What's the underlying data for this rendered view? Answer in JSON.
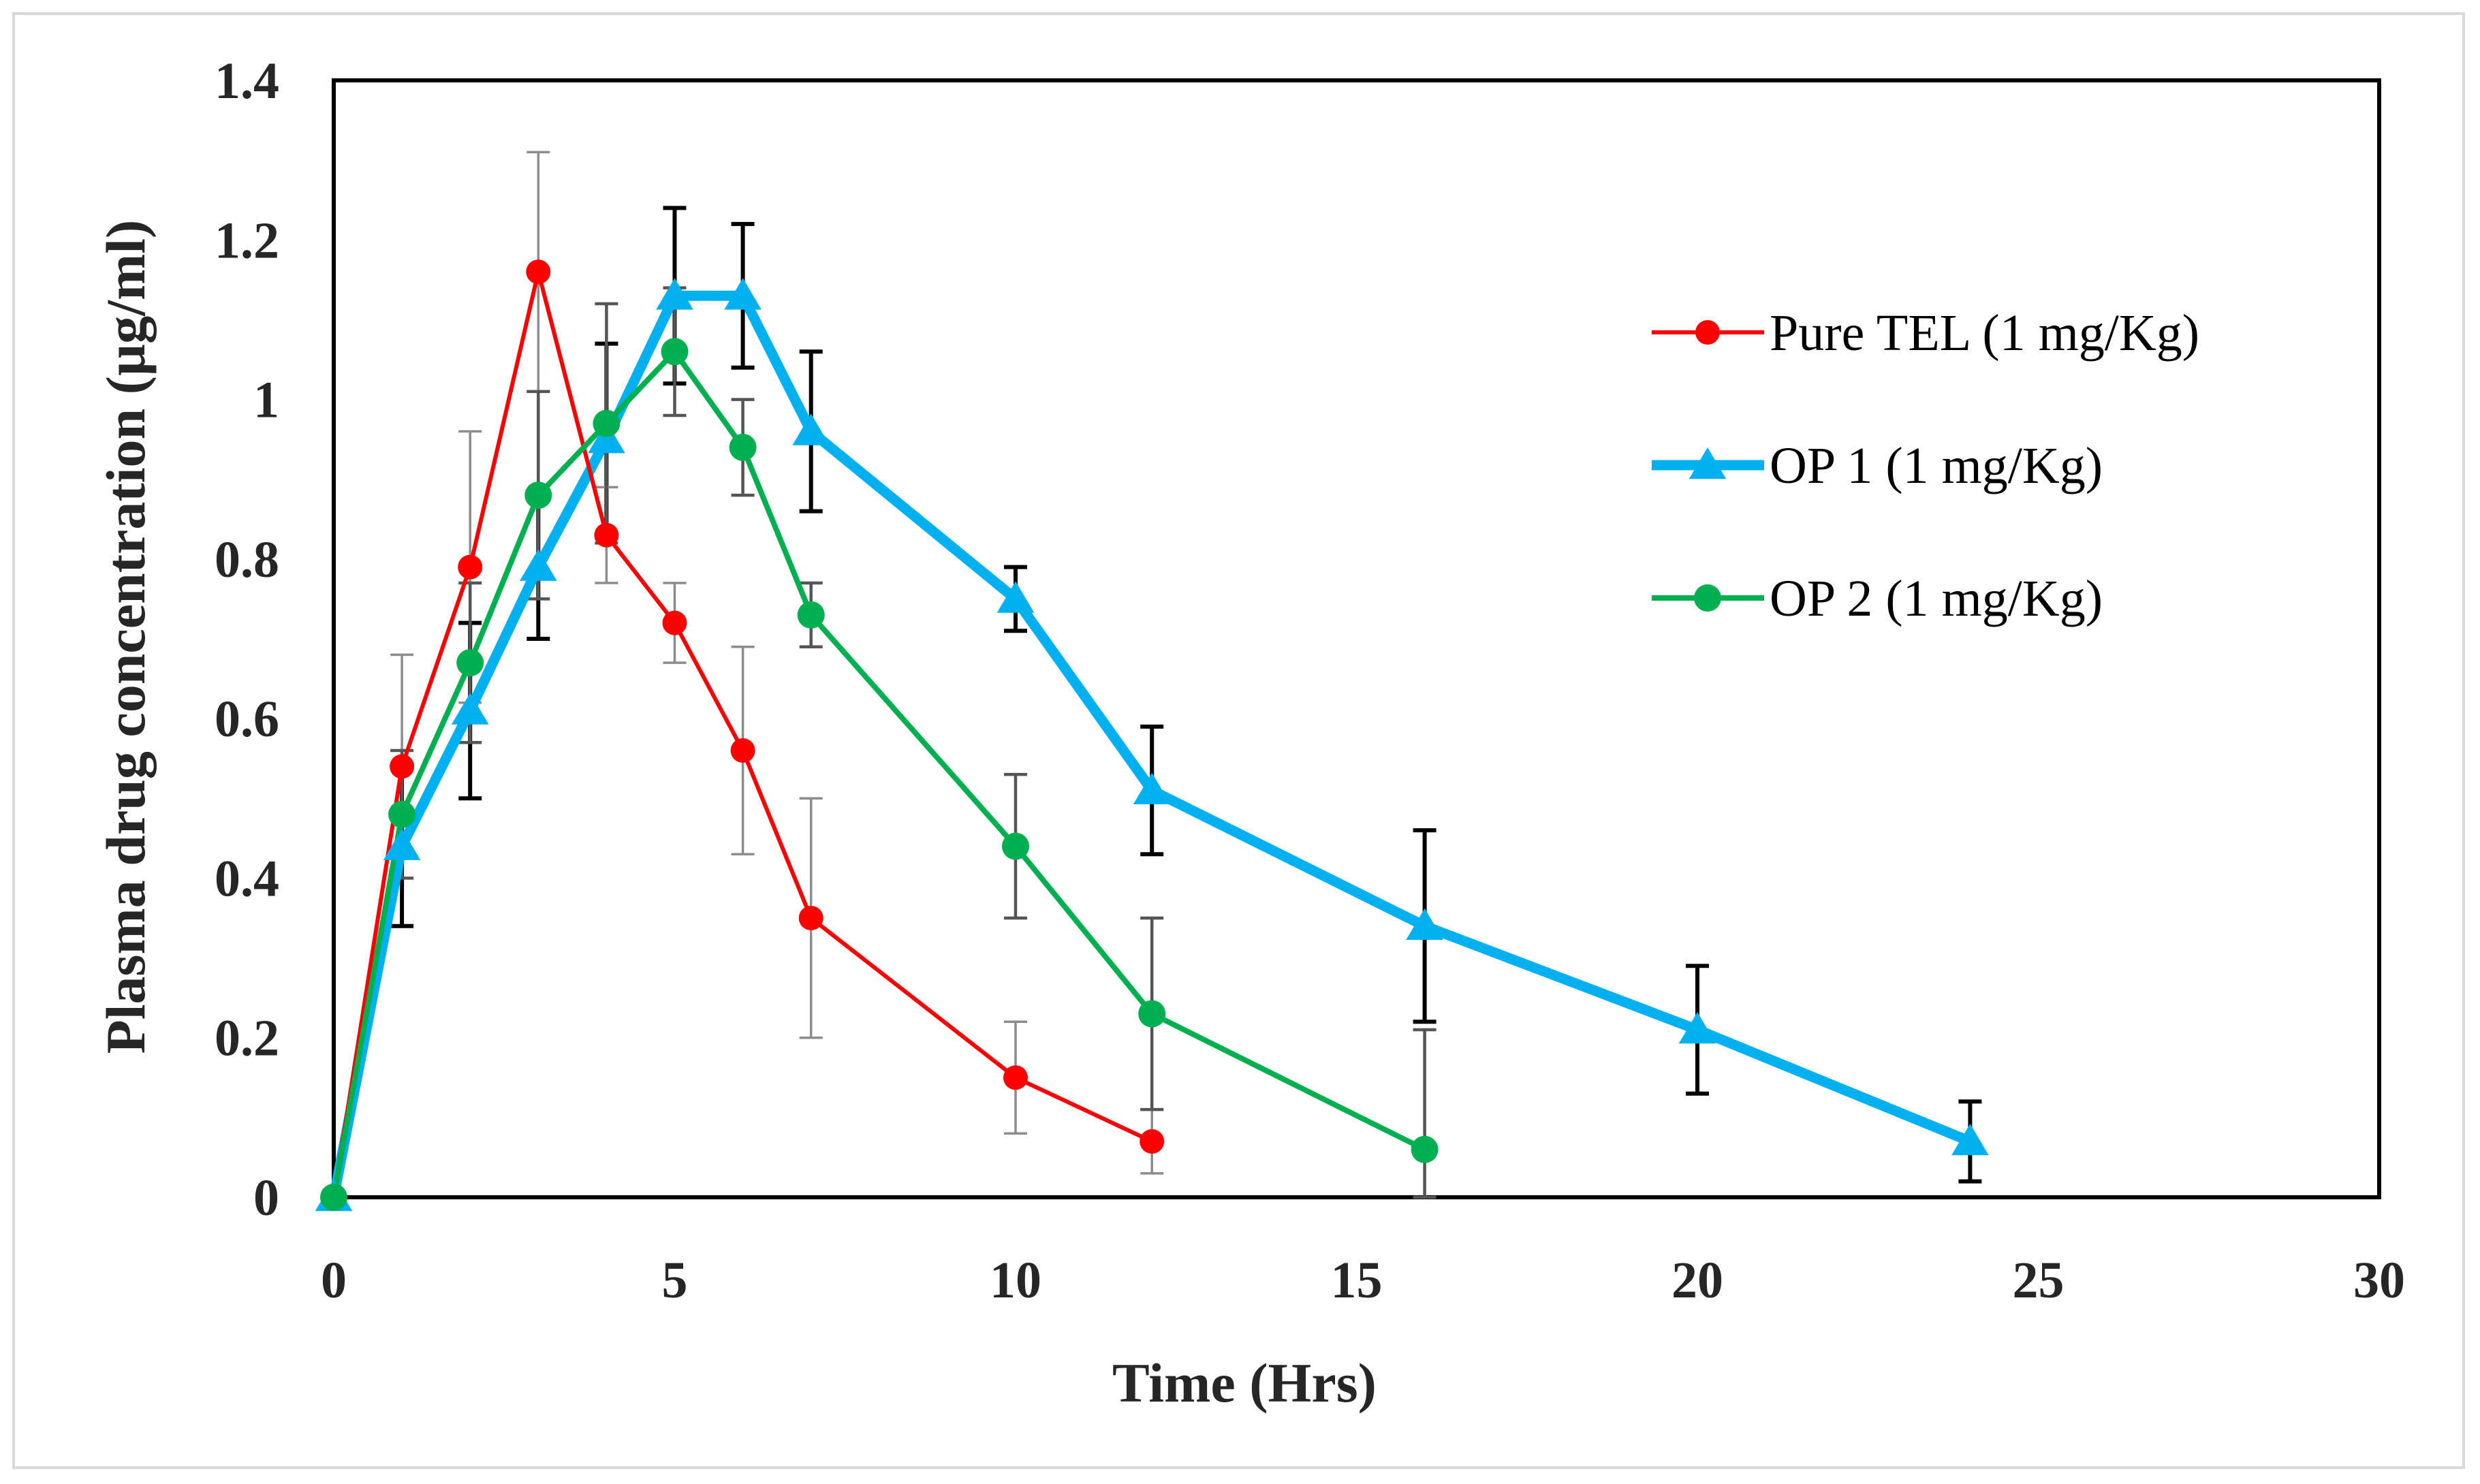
{
  "chart_data": {
    "type": "line",
    "title": "",
    "xlabel": "Time (Hrs)",
    "ylabel": "Plasma drug concentration (µg/ml)",
    "xlim": [
      0,
      30
    ],
    "ylim": [
      0,
      1.4
    ],
    "xticks": [
      0,
      5,
      10,
      15,
      20,
      25,
      30
    ],
    "yticks": [
      0,
      0.2,
      0.4,
      0.6,
      0.8,
      1,
      1.2,
      1.4
    ],
    "ytick_labels": [
      "0",
      "0.2",
      "0.4",
      "0.6",
      "0.8",
      "1",
      "1.2",
      "1.4"
    ],
    "grid": false,
    "legend_position": "upper-right",
    "series": [
      {
        "name": "Pure TEL (1 mg/Kg)",
        "color": "#ff0000",
        "marker": "circle",
        "x": [
          0,
          1,
          2,
          3,
          4,
          5,
          6,
          7,
          10,
          12
        ],
        "y": [
          0,
          0.54,
          0.79,
          1.16,
          0.83,
          0.72,
          0.56,
          0.35,
          0.15,
          0.07
        ],
        "err": [
          0,
          0.14,
          0.17,
          0.15,
          0.06,
          0.05,
          0.13,
          0.15,
          0.07,
          0.04
        ]
      },
      {
        "name": "OP 1 (1 mg/Kg)",
        "color": "#00b0f0",
        "marker": "triangle",
        "x": [
          0,
          1,
          2,
          3,
          4,
          5,
          6,
          7,
          10,
          12,
          16,
          20,
          24
        ],
        "y": [
          0,
          0.44,
          0.61,
          0.79,
          0.95,
          1.13,
          1.13,
          0.96,
          0.75,
          0.51,
          0.34,
          0.21,
          0.07
        ],
        "err": [
          0,
          0.1,
          0.11,
          0.09,
          0.12,
          0.11,
          0.09,
          0.1,
          0.04,
          0.08,
          0.12,
          0.08,
          0.05
        ]
      },
      {
        "name": "OP 2 (1 mg/Kg)",
        "color": "#00b050",
        "marker": "circle",
        "x": [
          0,
          1,
          2,
          3,
          4,
          5,
          6,
          7,
          10,
          12,
          16
        ],
        "y": [
          0,
          0.48,
          0.67,
          0.88,
          0.97,
          1.06,
          0.94,
          0.73,
          0.44,
          0.23,
          0.06
        ],
        "err": [
          0,
          0.08,
          0.1,
          0.13,
          0.15,
          0.08,
          0.06,
          0.04,
          0.09,
          0.12,
          0.15
        ]
      }
    ]
  }
}
